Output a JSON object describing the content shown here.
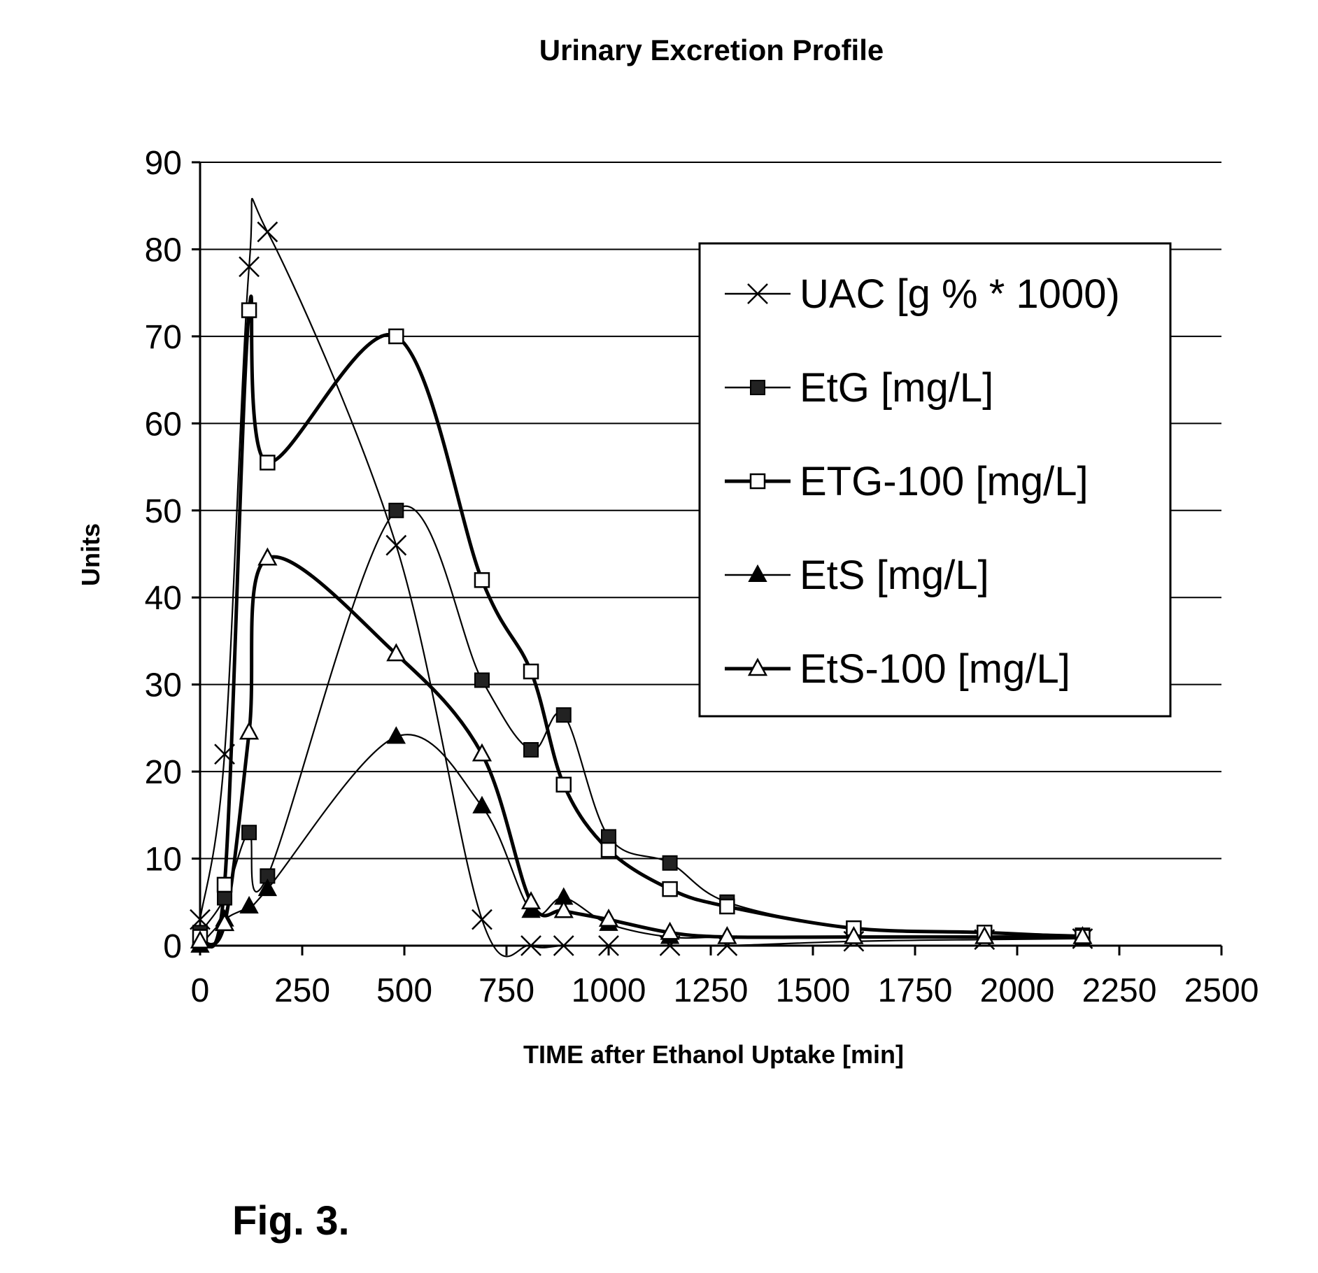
{
  "chart_data": {
    "type": "line",
    "title": "Urinary Excretion Profile",
    "xlabel": "TIME after Ethanol Uptake [min]",
    "ylabel": "Units",
    "xlim": [
      0,
      2500
    ],
    "ylim": [
      0,
      90
    ],
    "x_ticks": [
      0,
      250,
      500,
      750,
      1000,
      1250,
      1500,
      1750,
      2000,
      2250,
      2500
    ],
    "y_ticks": [
      0,
      10,
      20,
      30,
      40,
      50,
      60,
      70,
      80,
      90
    ],
    "grid": "horizontal",
    "legend_position": "top-right",
    "series": [
      {
        "name": "UAC [g % * 1000)",
        "marker": "x",
        "line_weight": "thin",
        "x": [
          0,
          60,
          120,
          165,
          480,
          690,
          810,
          890,
          1000,
          1150,
          1290,
          1600,
          1920,
          2160
        ],
        "y": [
          3,
          22,
          78,
          82,
          46,
          3,
          0,
          0,
          0,
          0,
          0,
          0.5,
          0.7,
          0.8
        ]
      },
      {
        "name": "EtG [mg/L]",
        "marker": "filled-square",
        "line_weight": "thin",
        "x": [
          0,
          60,
          120,
          165,
          480,
          690,
          810,
          890,
          1000,
          1150,
          1290,
          1600,
          1920,
          2160
        ],
        "y": [
          1.5,
          5.5,
          13,
          8,
          50,
          30.5,
          22.5,
          26.5,
          12.5,
          9.5,
          5,
          2,
          1.5,
          1.2
        ]
      },
      {
        "name": "ETG-100 [mg/L]",
        "marker": "open-square",
        "line_weight": "thick",
        "x": [
          0,
          60,
          120,
          165,
          480,
          690,
          810,
          890,
          1000,
          1150,
          1290,
          1600,
          1920,
          2160
        ],
        "y": [
          1,
          7,
          73,
          55.5,
          70,
          42,
          31.5,
          18.5,
          11,
          6.5,
          4.5,
          2,
          1.5,
          1
        ]
      },
      {
        "name": "EtS [mg/L]",
        "marker": "filled-triangle",
        "line_weight": "thin",
        "x": [
          0,
          60,
          120,
          165,
          480,
          690,
          810,
          890,
          1000,
          1150,
          1290,
          1600,
          1920,
          2160
        ],
        "y": [
          0,
          3,
          4.5,
          6.5,
          24,
          16,
          4,
          5.5,
          2.5,
          1,
          1,
          1,
          1,
          1
        ]
      },
      {
        "name": "EtS-100 [mg/L]",
        "marker": "open-triangle",
        "line_weight": "thick",
        "x": [
          0,
          60,
          120,
          165,
          480,
          690,
          810,
          890,
          1000,
          1150,
          1290,
          1600,
          1920,
          2160
        ],
        "y": [
          0.5,
          2.5,
          24.5,
          44.5,
          33.5,
          22,
          5,
          4,
          3,
          1.5,
          1,
          1,
          1,
          1
        ]
      }
    ]
  },
  "caption": "Fig. 3."
}
